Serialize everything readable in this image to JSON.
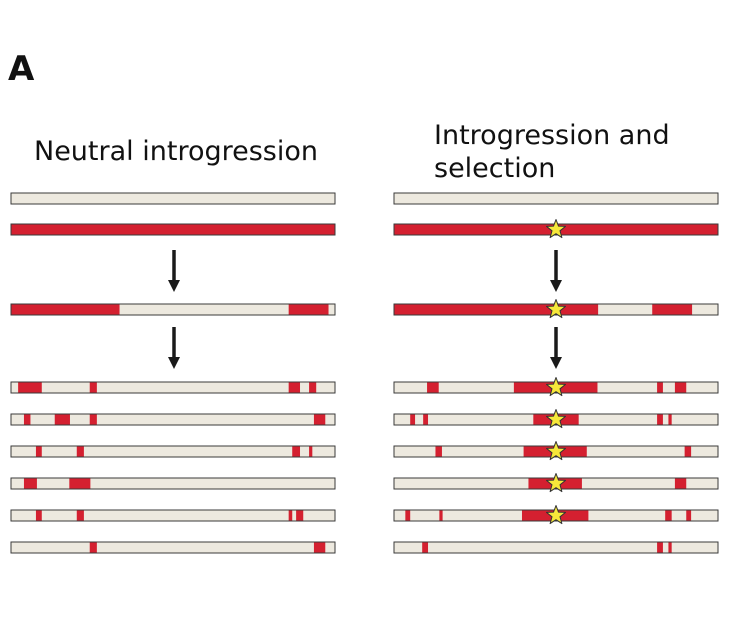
{
  "panel_label": "A",
  "titles": {
    "left": "Neutral introgression",
    "right_line1": "Introgression and",
    "right_line2": "selection"
  },
  "colors": {
    "native": "#ede9df",
    "introgressed": "#d42030",
    "outline": "#3a3a3a",
    "arrow": "#1a1a1a",
    "star_fill": "#f7e83a",
    "star_outline": "#333333"
  },
  "panels": {
    "left": {
      "parents": [
        {
          "segments": []
        },
        {
          "segments": [
            [
              0,
              1
            ]
          ]
        }
      ],
      "intermediate": {
        "segments": [
          [
            0,
            0.335
          ],
          [
            0.857,
            0.98
          ]
        ]
      },
      "descendants": [
        {
          "segments": [
            [
              0.022,
              0.095
            ],
            [
              0.243,
              0.265
            ],
            [
              0.857,
              0.892
            ],
            [
              0.92,
              0.942
            ]
          ]
        },
        {
          "segments": [
            [
              0.04,
              0.06
            ],
            [
              0.135,
              0.182
            ],
            [
              0.243,
              0.265
            ],
            [
              0.935,
              0.97
            ]
          ]
        },
        {
          "segments": [
            [
              0.077,
              0.095
            ],
            [
              0.203,
              0.225
            ],
            [
              0.868,
              0.892
            ],
            [
              0.92,
              0.93
            ]
          ]
        },
        {
          "segments": [
            [
              0.04,
              0.08
            ],
            [
              0.18,
              0.245
            ]
          ]
        },
        {
          "segments": [
            [
              0.077,
              0.095
            ],
            [
              0.203,
              0.225
            ],
            [
              0.857,
              0.868
            ],
            [
              0.88,
              0.902
            ]
          ]
        },
        {
          "segments": [
            [
              0.243,
              0.265
            ],
            [
              0.935,
              0.97
            ]
          ]
        }
      ]
    },
    "right": {
      "star_position": 0.5,
      "parents": [
        {
          "segments": [],
          "star": false
        },
        {
          "segments": [
            [
              0,
              1
            ]
          ],
          "star": true
        }
      ],
      "intermediate": {
        "segments": [
          [
            0,
            0.63
          ],
          [
            0.797,
            0.92
          ]
        ],
        "star": true
      },
      "descendants": [
        {
          "segments": [
            [
              0.102,
              0.138
            ],
            [
              0.37,
              0.628
            ],
            [
              0.812,
              0.83
            ],
            [
              0.867,
              0.902
            ]
          ],
          "star": true
        },
        {
          "segments": [
            [
              0.05,
              0.065
            ],
            [
              0.09,
              0.105
            ],
            [
              0.43,
              0.57
            ],
            [
              0.812,
              0.83
            ],
            [
              0.847,
              0.857
            ]
          ],
          "star": true
        },
        {
          "segments": [
            [
              0.128,
              0.148
            ],
            [
              0.4,
              0.595
            ],
            [
              0.897,
              0.917
            ]
          ],
          "star": true
        },
        {
          "segments": [
            [
              0.415,
              0.58
            ],
            [
              0.867,
              0.902
            ]
          ],
          "star": true
        },
        {
          "segments": [
            [
              0.035,
              0.05
            ],
            [
              0.14,
              0.15
            ],
            [
              0.395,
              0.6
            ],
            [
              0.837,
              0.857
            ],
            [
              0.902,
              0.917
            ]
          ],
          "star": true
        },
        {
          "segments": [
            [
              0.087,
              0.105
            ],
            [
              0.812,
              0.83
            ],
            [
              0.847,
              0.857
            ]
          ],
          "star": false
        }
      ]
    }
  }
}
